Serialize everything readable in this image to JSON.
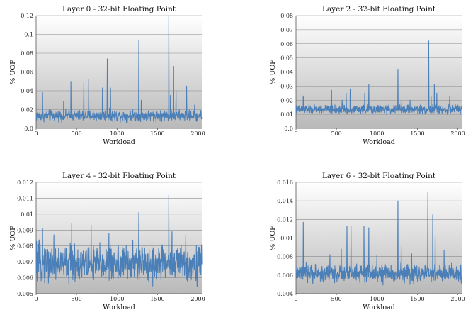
{
  "figure": {
    "panels": [
      {
        "title": "Layer 0 - 32-bit Floating Point",
        "xlabel": "Workload",
        "ylabel": "% UOF",
        "yticks": [
          "0.0",
          "0.02",
          "0.04",
          "0.06",
          "0.08",
          "0.1",
          "0.12"
        ],
        "xticks": [
          "0",
          "500",
          "1000",
          "1500",
          "2000"
        ]
      },
      {
        "title": "Layer 2 - 32-bit Floating Point",
        "xlabel": "Workload",
        "ylabel": "% UOF",
        "yticks": [
          "0.0",
          "0.01",
          "0.02",
          "0.03",
          "0.04",
          "0.05",
          "0.06",
          "0.07",
          "0.08"
        ],
        "xticks": [
          "0",
          "500",
          "1000",
          "1500",
          "2000"
        ]
      },
      {
        "title": "Layer 4 - 32-bit Floating Point",
        "xlabel": "Workload",
        "ylabel": "% UOF",
        "yticks": [
          "0.005",
          "0.006",
          "0.007",
          "0.008",
          "0.009",
          "0.01",
          "0.011",
          "0.012"
        ],
        "xticks": [
          "0",
          "500",
          "1000",
          "1500",
          "2000"
        ]
      },
      {
        "title": "Layer 6 - 32-bit Floating Point",
        "xlabel": "Workload",
        "ylabel": "% UOF",
        "yticks": [
          "0.004",
          "0.006",
          "0.008",
          "0.01",
          "0.012",
          "0.014",
          "0.016"
        ],
        "xticks": [
          "0",
          "500",
          "1000",
          "1500",
          "2000"
        ]
      }
    ]
  },
  "chart_data": [
    {
      "type": "line",
      "title": "Layer 0 - 32-bit Floating Point",
      "xlabel": "Workload",
      "ylabel": "% UOF",
      "xlim": [
        0,
        2048
      ],
      "ylim": [
        0.0,
        0.12
      ],
      "grid": true,
      "series_color": "#4a7fb8",
      "baseline": {
        "mean": 0.0135,
        "low": 0.005,
        "high": 0.022
      },
      "spikes": [
        {
          "x": 80,
          "y": 0.038
        },
        {
          "x": 340,
          "y": 0.029
        },
        {
          "x": 430,
          "y": 0.05
        },
        {
          "x": 590,
          "y": 0.049
        },
        {
          "x": 650,
          "y": 0.052
        },
        {
          "x": 820,
          "y": 0.043
        },
        {
          "x": 880,
          "y": 0.074
        },
        {
          "x": 920,
          "y": 0.043
        },
        {
          "x": 1270,
          "y": 0.094
        },
        {
          "x": 1300,
          "y": 0.03
        },
        {
          "x": 1640,
          "y": 0.12
        },
        {
          "x": 1660,
          "y": 0.035
        },
        {
          "x": 1700,
          "y": 0.066
        },
        {
          "x": 1730,
          "y": 0.04
        },
        {
          "x": 1860,
          "y": 0.045
        },
        {
          "x": 1960,
          "y": 0.025
        }
      ]
    },
    {
      "type": "line",
      "title": "Layer 2 - 32-bit Floating Point",
      "xlabel": "Workload",
      "ylabel": "% UOF",
      "xlim": [
        0,
        2048
      ],
      "ylim": [
        0.0,
        0.08
      ],
      "grid": true,
      "series_color": "#4a7fb8",
      "baseline": {
        "mean": 0.0135,
        "low": 0.009,
        "high": 0.018
      },
      "spikes": [
        {
          "x": 90,
          "y": 0.023
        },
        {
          "x": 440,
          "y": 0.027
        },
        {
          "x": 570,
          "y": 0.02
        },
        {
          "x": 620,
          "y": 0.025
        },
        {
          "x": 670,
          "y": 0.028
        },
        {
          "x": 850,
          "y": 0.025
        },
        {
          "x": 900,
          "y": 0.031
        },
        {
          "x": 1260,
          "y": 0.042
        },
        {
          "x": 1300,
          "y": 0.02
        },
        {
          "x": 1410,
          "y": 0.02
        },
        {
          "x": 1640,
          "y": 0.062
        },
        {
          "x": 1670,
          "y": 0.023
        },
        {
          "x": 1710,
          "y": 0.031
        },
        {
          "x": 1740,
          "y": 0.025
        },
        {
          "x": 1900,
          "y": 0.023
        }
      ]
    },
    {
      "type": "line",
      "title": "Layer 4 - 32-bit Floating Point",
      "xlabel": "Workload",
      "ylabel": "% UOF",
      "xlim": [
        0,
        2048
      ],
      "ylim": [
        0.005,
        0.012
      ],
      "grid": true,
      "series_color": "#4a7fb8",
      "baseline": {
        "mean": 0.0069,
        "low": 0.0052,
        "high": 0.0086
      },
      "spikes": [
        {
          "x": 80,
          "y": 0.0091
        },
        {
          "x": 220,
          "y": 0.0087
        },
        {
          "x": 440,
          "y": 0.0094
        },
        {
          "x": 680,
          "y": 0.0093
        },
        {
          "x": 900,
          "y": 0.0088
        },
        {
          "x": 1270,
          "y": 0.0101
        },
        {
          "x": 1640,
          "y": 0.0112
        },
        {
          "x": 1680,
          "y": 0.0089
        },
        {
          "x": 1850,
          "y": 0.0087
        }
      ]
    },
    {
      "type": "line",
      "title": "Layer 6 - 32-bit Floating Point",
      "xlabel": "Workload",
      "ylabel": "% UOF",
      "xlim": [
        0,
        2048
      ],
      "ylim": [
        0.004,
        0.016
      ],
      "grid": true,
      "series_color": "#4a7fb8",
      "baseline": {
        "mean": 0.0063,
        "low": 0.0048,
        "high": 0.0075
      },
      "spikes": [
        {
          "x": 90,
          "y": 0.0117
        },
        {
          "x": 420,
          "y": 0.0082
        },
        {
          "x": 560,
          "y": 0.0088
        },
        {
          "x": 630,
          "y": 0.0113
        },
        {
          "x": 680,
          "y": 0.0113
        },
        {
          "x": 840,
          "y": 0.0113
        },
        {
          "x": 900,
          "y": 0.0111
        },
        {
          "x": 1000,
          "y": 0.0081
        },
        {
          "x": 1260,
          "y": 0.014
        },
        {
          "x": 1300,
          "y": 0.0092
        },
        {
          "x": 1430,
          "y": 0.0083
        },
        {
          "x": 1630,
          "y": 0.0149
        },
        {
          "x": 1690,
          "y": 0.0125
        },
        {
          "x": 1720,
          "y": 0.0103
        },
        {
          "x": 1830,
          "y": 0.0087
        }
      ]
    }
  ]
}
